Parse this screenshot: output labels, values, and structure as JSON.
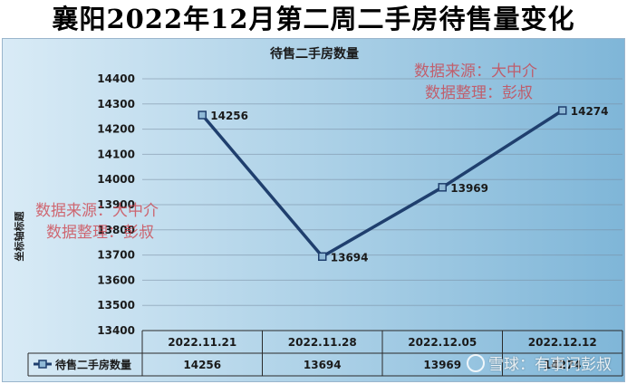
{
  "page_title": "襄阳2022年12月第二周二手房待售量变化",
  "chart_data": {
    "type": "line",
    "title": "待售二手房数量",
    "xlabel": "",
    "ylabel": "坐标轴标题",
    "categories": [
      "2022.11.21",
      "2022.11.28",
      "2022.12.05",
      "2022.12.12"
    ],
    "series": [
      {
        "name": "待售二手房数量",
        "values": [
          14256,
          13694,
          13969,
          14274
        ]
      }
    ],
    "ylim": [
      13400,
      14400
    ],
    "yticks": [
      14400,
      14300,
      14200,
      14100,
      14000,
      13900,
      13800,
      13700,
      13600,
      13500,
      13400
    ],
    "table_values": [
      "14256",
      "13694",
      "13969",
      "14274"
    ],
    "grid": true,
    "legend": "data-table-left",
    "colors": {
      "line": "#1f3f6e",
      "marker_fill": "#8fb9d6"
    }
  },
  "watermarks": [
    {
      "line1": "数据来源：大中介",
      "line2": "数据整理：彭叔"
    },
    {
      "line1": "数据来源：大中介",
      "line2": "数据整理：彭叔"
    }
  ],
  "credit": {
    "text": "雪球：有事问彭叔",
    "icon": "snowball-logo-icon"
  }
}
